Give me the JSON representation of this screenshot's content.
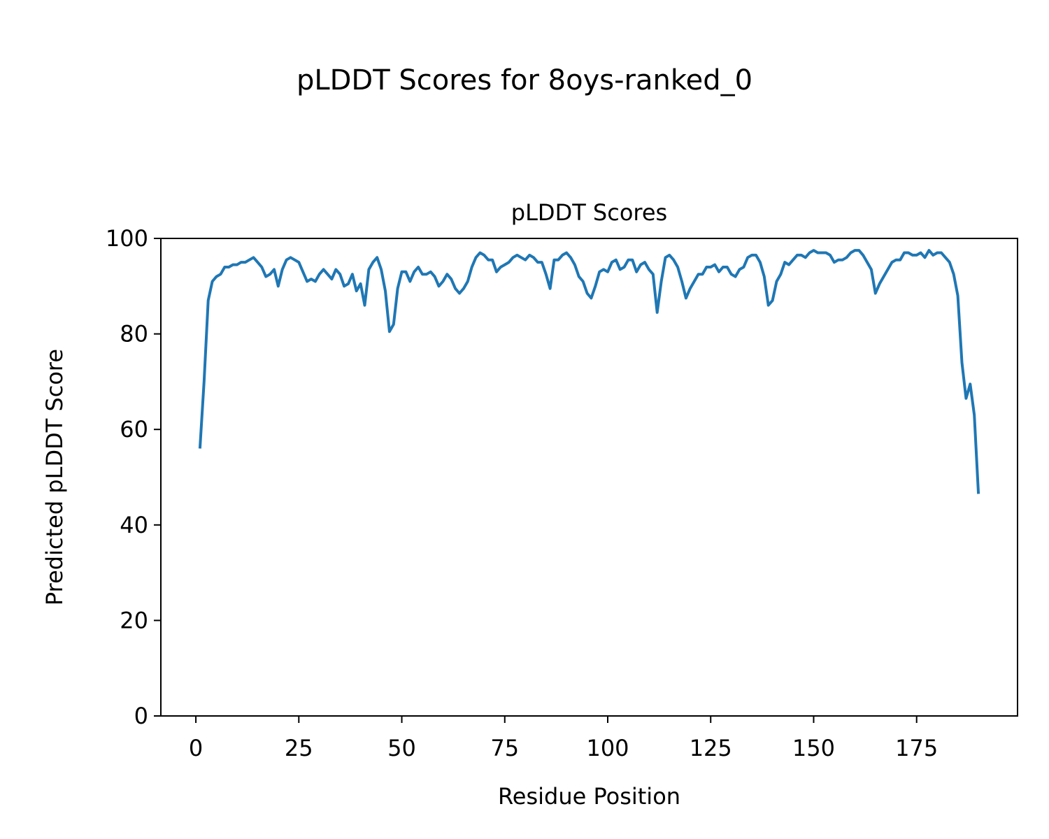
{
  "figure_title": "pLDDT Scores for 8oys-ranked_0",
  "chart_data": {
    "type": "line",
    "title": "pLDDT Scores",
    "xlabel": "Residue Position",
    "ylabel": "Predicted pLDDT Score",
    "xlim": [
      -8.5,
      199.5
    ],
    "ylim": [
      0,
      100
    ],
    "xticks": [
      0,
      25,
      50,
      75,
      100,
      125,
      150,
      175
    ],
    "yticks": [
      0,
      20,
      40,
      60,
      80,
      100
    ],
    "grid": false,
    "series": [
      {
        "color": "#1f77b4",
        "x": [
          1,
          2,
          3,
          4,
          5,
          6,
          7,
          8,
          9,
          10,
          11,
          12,
          13,
          14,
          15,
          16,
          17,
          18,
          19,
          20,
          21,
          22,
          23,
          24,
          25,
          26,
          27,
          28,
          29,
          30,
          31,
          32,
          33,
          34,
          35,
          36,
          37,
          38,
          39,
          40,
          41,
          42,
          43,
          44,
          45,
          46,
          47,
          48,
          49,
          50,
          51,
          52,
          53,
          54,
          55,
          56,
          57,
          58,
          59,
          60,
          61,
          62,
          63,
          64,
          65,
          66,
          67,
          68,
          69,
          70,
          71,
          72,
          73,
          74,
          75,
          76,
          77,
          78,
          79,
          80,
          81,
          82,
          83,
          84,
          85,
          86,
          87,
          88,
          89,
          90,
          91,
          92,
          93,
          94,
          95,
          96,
          97,
          98,
          99,
          100,
          101,
          102,
          103,
          104,
          105,
          106,
          107,
          108,
          109,
          110,
          111,
          112,
          113,
          114,
          115,
          116,
          117,
          118,
          119,
          120,
          121,
          122,
          123,
          124,
          125,
          126,
          127,
          128,
          129,
          130,
          131,
          132,
          133,
          134,
          135,
          136,
          137,
          138,
          139,
          140,
          141,
          142,
          143,
          144,
          145,
          146,
          147,
          148,
          149,
          150,
          151,
          152,
          153,
          154,
          155,
          156,
          157,
          158,
          159,
          160,
          161,
          162,
          163,
          164,
          165,
          166,
          167,
          168,
          169,
          170,
          171,
          172,
          173,
          174,
          175,
          176,
          177,
          178,
          179,
          180,
          181,
          182,
          183,
          184,
          185,
          186,
          187,
          188,
          189,
          190
        ],
        "y": [
          56,
          70,
          87,
          91,
          92,
          92.5,
          94,
          94,
          94.5,
          94.5,
          95,
          95,
          95.5,
          96,
          95,
          94,
          92,
          92.5,
          93.5,
          90,
          93.5,
          95.5,
          96,
          95.5,
          95,
          93,
          91,
          91.5,
          91,
          92.5,
          93.5,
          92.5,
          91.5,
          93.5,
          92.5,
          90,
          90.5,
          92.5,
          89,
          90.5,
          86,
          93.5,
          95,
          96,
          93.5,
          89,
          80.5,
          82,
          89.5,
          93,
          93,
          91,
          93,
          94,
          92.5,
          92.5,
          93,
          92,
          90,
          91,
          92.5,
          91.5,
          89.5,
          88.5,
          89.5,
          91,
          94,
          96,
          97,
          96.5,
          95.5,
          95.5,
          93,
          94,
          94.5,
          95,
          96,
          96.5,
          96,
          95.5,
          96.5,
          96,
          95,
          95,
          92.5,
          89.5,
          95.5,
          95.5,
          96.5,
          97,
          96,
          94.5,
          92,
          91,
          88.5,
          87.5,
          90,
          93,
          93.5,
          93,
          95,
          95.5,
          93.5,
          94,
          95.5,
          95.5,
          93,
          94.5,
          95,
          93.5,
          92.5,
          84.5,
          91,
          96,
          96.5,
          95.5,
          94,
          91,
          87.5,
          89.5,
          91,
          92.5,
          92.5,
          94,
          94,
          94.5,
          93,
          94,
          94,
          92.5,
          92,
          93.5,
          94,
          96,
          96.5,
          96.5,
          95,
          92,
          86,
          87,
          91,
          92.5,
          95,
          94.5,
          95.5,
          96.5,
          96.5,
          96,
          97,
          97.5,
          97,
          97,
          97,
          96.5,
          95,
          95.5,
          95.5,
          96,
          97,
          97.5,
          97.5,
          96.5,
          95,
          93.5,
          88.5,
          90.5,
          92,
          93.5,
          95,
          95.5,
          95.5,
          97,
          97,
          96.5,
          96.5,
          97,
          96,
          97.5,
          96.5,
          97,
          97,
          96,
          95,
          92.5,
          88,
          74,
          66.5,
          69.5,
          63,
          46.5
        ]
      }
    ]
  }
}
